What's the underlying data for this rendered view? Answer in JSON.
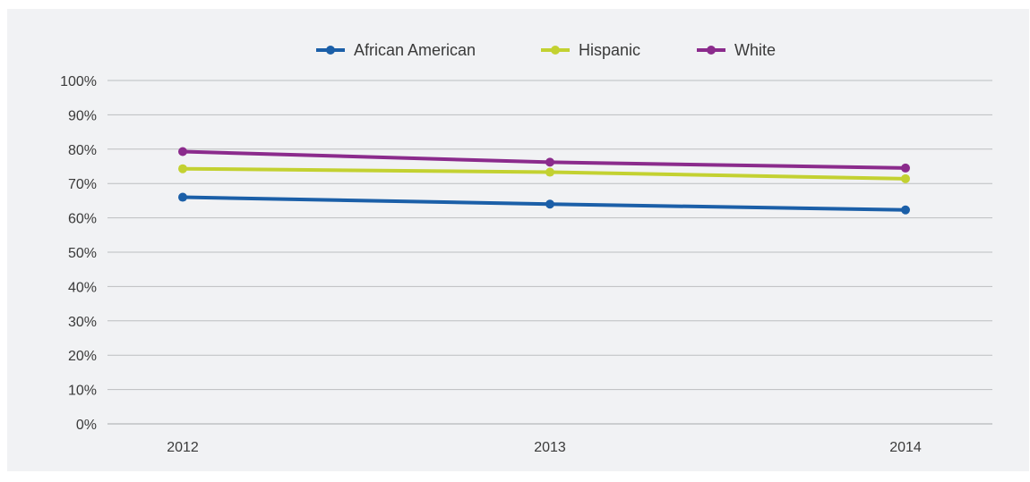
{
  "chart_data": {
    "type": "line",
    "categories": [
      "2012",
      "2013",
      "2014"
    ],
    "series": [
      {
        "name": "African American",
        "color": "#1b5fa8",
        "values": [
          66,
          64,
          62.3
        ]
      },
      {
        "name": "Hispanic",
        "color": "#c3d131",
        "values": [
          74.3,
          73.3,
          71.4
        ]
      },
      {
        "name": "White",
        "color": "#8b2b8c",
        "values": [
          79.3,
          76.2,
          74.5
        ]
      }
    ],
    "y_ticks": [
      "0%",
      "10%",
      "20%",
      "30%",
      "40%",
      "50%",
      "60%",
      "70%",
      "80%",
      "90%",
      "100%"
    ],
    "ylim": [
      0,
      100
    ],
    "grid": true,
    "legend_position": "top-center"
  }
}
